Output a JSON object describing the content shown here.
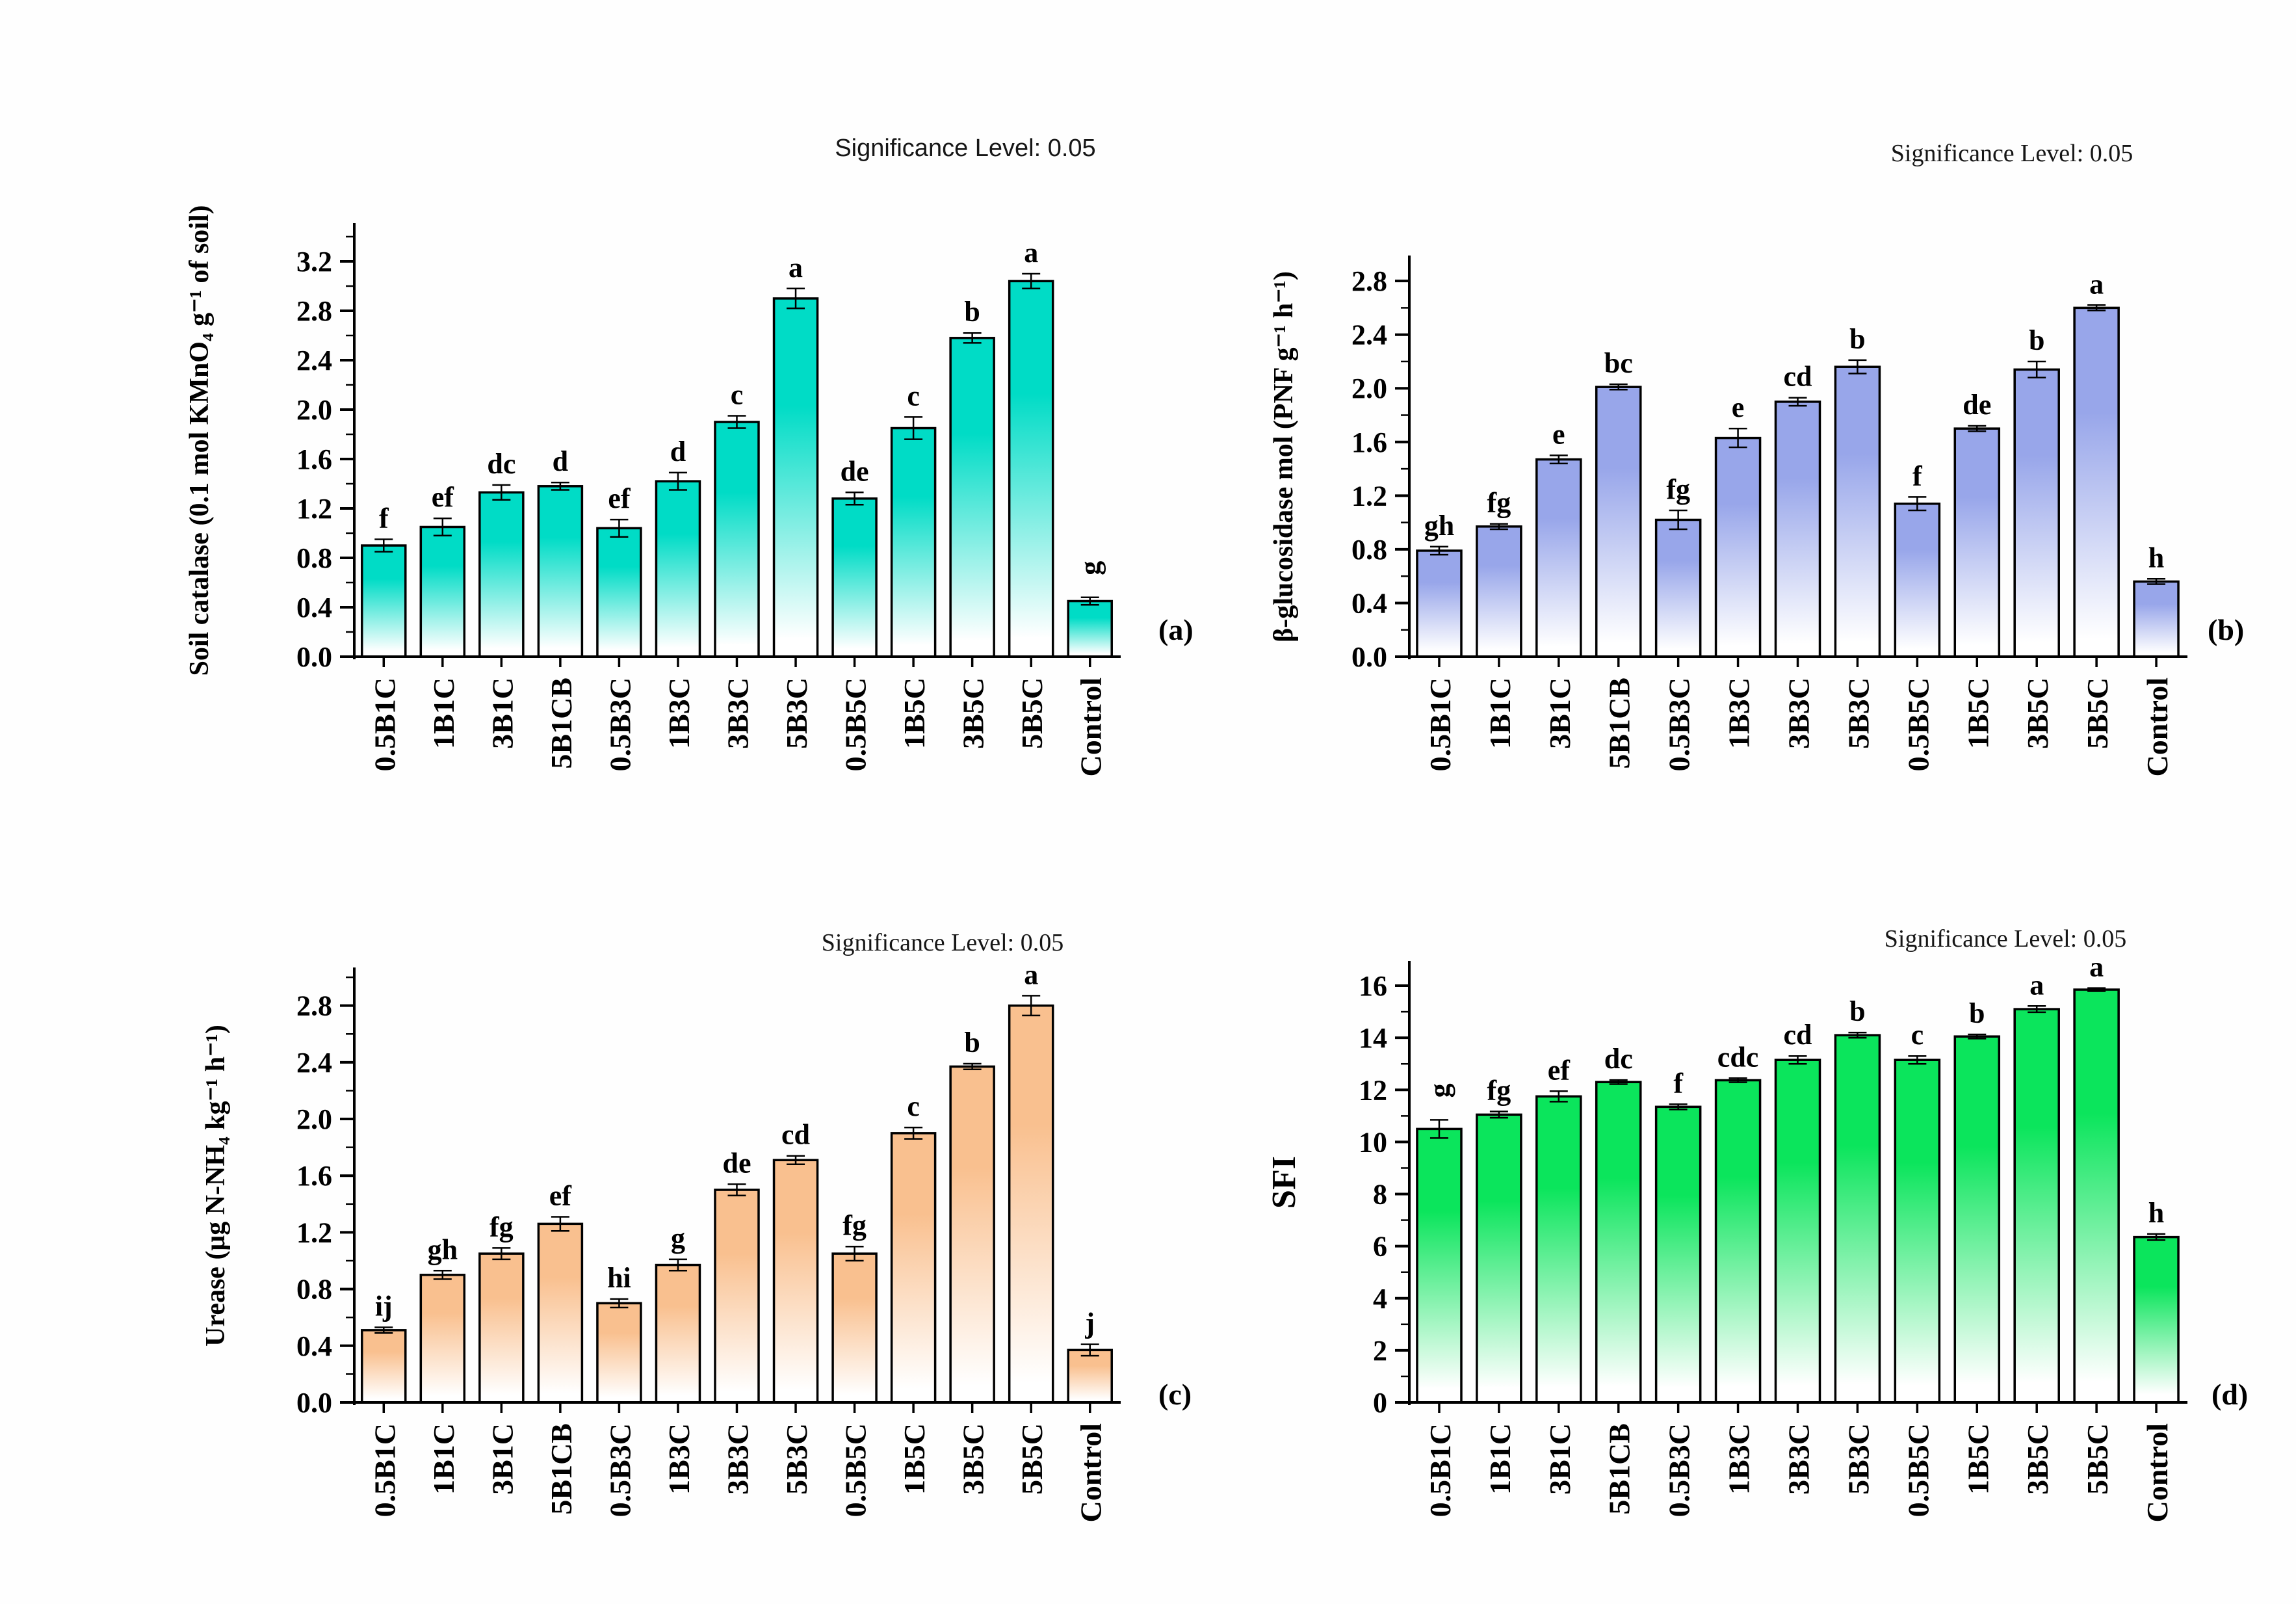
{
  "figure": {
    "background": "#fefefe",
    "text_color": "#000000"
  },
  "chart_data": [
    {
      "type": "bar",
      "panel_label": "(a)",
      "title": "Significance Level: 0.05",
      "title_font": "sans",
      "ylabel": "Soil catalase (0.1 mol KMnO₄ g⁻¹ of soil)",
      "xlabel": "",
      "categories": [
        "0.5B1C",
        "1B1C",
        "3B1C",
        "5B1CB",
        "0.5B3C",
        "1B3C",
        "3B3C",
        "5B3C",
        "0.5B5C",
        "1B5C",
        "3B5C",
        "5B5C",
        "Control"
      ],
      "values": [
        0.9,
        1.05,
        1.33,
        1.38,
        1.04,
        1.42,
        1.9,
        2.9,
        1.28,
        1.85,
        2.58,
        3.04,
        0.45
      ],
      "errors": [
        0.05,
        0.07,
        0.06,
        0.03,
        0.07,
        0.07,
        0.05,
        0.08,
        0.05,
        0.09,
        0.04,
        0.06,
        0.03
      ],
      "letters": [
        "f",
        "ef",
        "dc",
        "d",
        "ef",
        "d",
        "c",
        "a",
        "de",
        "c",
        "b",
        "a",
        "g"
      ],
      "rotated_letters": [
        12
      ],
      "bar_color_top": "#00dcc6",
      "bar_color_bottom": "#ffffff",
      "ylim": [
        0,
        3.5
      ],
      "ytick_step": 0.4,
      "minor_step": 0.2,
      "ytick_labels": [
        "0.0",
        "0.4",
        "0.8",
        "1.2",
        "1.6",
        "2.0",
        "2.4",
        "2.8",
        "3.2"
      ],
      "grid": "off",
      "legend": "none"
    },
    {
      "type": "bar",
      "panel_label": "(b)",
      "title": "Significance Level: 0.05",
      "title_font": "serif",
      "ylabel": "β-glucosidase mol (PNF g⁻¹ h⁻¹)",
      "xlabel": "",
      "categories": [
        "0.5B1C",
        "1B1C",
        "3B1C",
        "5B1CB",
        "0.5B3C",
        "1B3C",
        "3B3C",
        "5B3C",
        "0.5B5C",
        "1B5C",
        "3B5C",
        "5B5C",
        "Control"
      ],
      "values": [
        0.79,
        0.97,
        1.47,
        2.01,
        1.02,
        1.63,
        1.9,
        2.16,
        1.14,
        1.7,
        2.14,
        2.6,
        0.56
      ],
      "errors": [
        0.03,
        0.02,
        0.03,
        0.02,
        0.07,
        0.07,
        0.03,
        0.05,
        0.05,
        0.02,
        0.06,
        0.02,
        0.02
      ],
      "letters": [
        "gh",
        "fg",
        "e",
        "bc",
        "fg",
        "e",
        "cd",
        "b",
        "f",
        "de",
        "b",
        "a",
        "h"
      ],
      "rotated_letters": [],
      "bar_color_top": "#98a6ea",
      "bar_color_bottom": "#ffffff",
      "ylim": [
        0,
        2.98
      ],
      "ytick_step": 0.4,
      "minor_step": 0.2,
      "ytick_labels": [
        "0.0",
        "0.4",
        "0.8",
        "1.2",
        "1.6",
        "2.0",
        "2.4",
        "2.8"
      ],
      "grid": "off",
      "legend": "none"
    },
    {
      "type": "bar",
      "panel_label": "(c)",
      "title": "Significance Level: 0.05",
      "title_font": "serif",
      "ylabel": "Urease (μg N-NH₄ kg⁻¹ h⁻¹)",
      "xlabel": "",
      "categories": [
        "0.5B1C",
        "1B1C",
        "3B1C",
        "5B1CB",
        "0.5B3C",
        "1B3C",
        "3B3C",
        "5B3C",
        "0.5B5C",
        "1B5C",
        "3B5C",
        "5B5C",
        "Control"
      ],
      "values": [
        0.51,
        0.9,
        1.05,
        1.26,
        0.7,
        0.97,
        1.5,
        1.71,
        1.05,
        1.9,
        2.37,
        2.8,
        0.37
      ],
      "errors": [
        0.02,
        0.03,
        0.04,
        0.05,
        0.03,
        0.04,
        0.04,
        0.03,
        0.05,
        0.04,
        0.02,
        0.07,
        0.04
      ],
      "letters": [
        "ij",
        "gh",
        "fg",
        "ef",
        "hi",
        "g",
        "de",
        "cd",
        "fg",
        "c",
        "b",
        "a",
        "j"
      ],
      "rotated_letters": [],
      "bar_color_top": "#f9c08f",
      "bar_color_bottom": "#ffffff",
      "ylim": [
        0,
        3.06
      ],
      "ytick_step": 0.4,
      "minor_step": 0.2,
      "ytick_labels": [
        "0.0",
        "0.4",
        "0.8",
        "1.2",
        "1.6",
        "2.0",
        "2.4",
        "2.8"
      ],
      "grid": "off",
      "legend": "none"
    },
    {
      "type": "bar",
      "panel_label": "(d)",
      "title": "Significance Level: 0.05",
      "title_font": "serif",
      "ylabel": "SFI",
      "xlabel": "",
      "categories": [
        "0.5B1C",
        "1B1C",
        "3B1C",
        "5B1CB",
        "0.5B3C",
        "1B3C",
        "3B3C",
        "5B3C",
        "0.5B5C",
        "1B5C",
        "3B5C",
        "5B5C",
        "Control"
      ],
      "values": [
        10.5,
        11.05,
        11.75,
        12.3,
        11.35,
        12.37,
        13.15,
        14.1,
        13.15,
        14.05,
        15.1,
        15.85,
        6.35
      ],
      "errors": [
        0.35,
        0.12,
        0.2,
        0.08,
        0.1,
        0.08,
        0.15,
        0.1,
        0.15,
        0.08,
        0.12,
        0.06,
        0.12
      ],
      "letters": [
        "g",
        "fg",
        "ef",
        "dc",
        "f",
        "cdc",
        "cd",
        "b",
        "c",
        "b",
        "a",
        "a",
        "h"
      ],
      "rotated_letters": [
        0
      ],
      "bar_color_top": "#0be55c",
      "bar_color_bottom": "#ffffff",
      "ylim": [
        0,
        16.9
      ],
      "ytick_step": 2,
      "minor_step": 1,
      "ytick_labels": [
        "0",
        "2",
        "4",
        "6",
        "8",
        "10",
        "12",
        "14",
        "16"
      ],
      "grid": "off",
      "legend": "none"
    }
  ]
}
